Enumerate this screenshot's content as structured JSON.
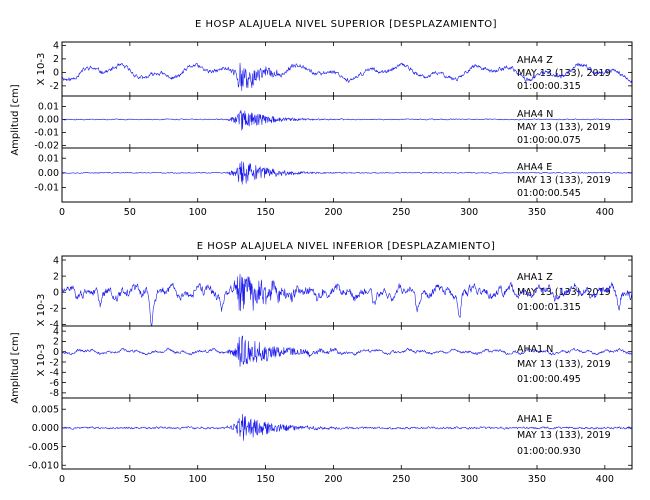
{
  "colors": {
    "trace": "#1a1aee",
    "axis": "#000000"
  },
  "chart_data": [
    {
      "type": "line",
      "title": "E HOSP ALAJUELA NIVEL SUPERIOR [DESPLAZAMIENTO]",
      "ylabel": "Amplitud [cm]",
      "xlim": [
        0,
        420
      ],
      "x_ticks": [
        0,
        50,
        100,
        150,
        200,
        250,
        300,
        350,
        400
      ],
      "x_tick_labels": [
        "0",
        "50",
        "100",
        "150",
        "200",
        "250",
        "300",
        "350",
        "400"
      ],
      "panels": [
        {
          "component": "Z",
          "unit_label": "X 10-3",
          "ylim": [
            -3.5,
            4.5
          ],
          "y_ticks": [
            -2,
            0,
            2,
            4
          ],
          "y_tick_labels": [
            "-2",
            "0",
            "2",
            "4"
          ],
          "label_lines": [
            "AHA4    Z",
            "MAY 13 (133), 2019",
            "01:00:00.315"
          ],
          "trace": {
            "noise": 0.55,
            "peak": 2.9,
            "decay": 0.07,
            "wave": 1.3,
            "period": 70,
            "seed": 11
          }
        },
        {
          "component": "N",
          "ylim": [
            -0.022,
            0.018
          ],
          "y_ticks": [
            -0.02,
            -0.01,
            0.0,
            0.01
          ],
          "y_tick_labels": [
            "-0.02",
            "-0.01",
            "0.00",
            "0.01"
          ],
          "label_lines": [
            "AHA4    N",
            "MAY 13 (133), 2019",
            "01:00:00.075"
          ],
          "trace": {
            "noise": 0.0007,
            "peak": 0.011,
            "decay": 0.055,
            "wave": 0.0,
            "period": 60,
            "seed": 23
          }
        },
        {
          "component": "E",
          "ylim": [
            -0.02,
            0.017
          ],
          "y_ticks": [
            -0.01,
            0.0,
            0.01
          ],
          "y_tick_labels": [
            "-0.01",
            "0.00",
            "0.01"
          ],
          "label_lines": [
            "AHA4    E",
            "MAY 13 (133), 2019",
            "01:00:00.545"
          ],
          "trace": {
            "noise": 0.0006,
            "peak": 0.011,
            "decay": 0.05,
            "wave": 0.0,
            "period": 60,
            "seed": 37
          }
        }
      ]
    },
    {
      "type": "line",
      "title": "E HOSP ALAJUELA NIVEL INFERIOR [DESPLAZAMIENTO]",
      "ylabel": "Amplitud [cm]",
      "xlim": [
        0,
        420
      ],
      "x_ticks": [
        0,
        50,
        100,
        150,
        200,
        250,
        300,
        350,
        400
      ],
      "x_tick_labels": [
        "0",
        "50",
        "100",
        "150",
        "200",
        "250",
        "300",
        "350",
        "400"
      ],
      "panels": [
        {
          "component": "Z",
          "unit_label": "X 10-3",
          "ylim": [
            -4.2,
            4.5
          ],
          "y_ticks": [
            -4,
            -2,
            0,
            2,
            4
          ],
          "y_tick_labels": [
            "-4",
            "-2",
            "0",
            "2",
            "4"
          ],
          "label_lines": [
            "AHA1    Z",
            "MAY 13 (133), 2019",
            "01:00:01.315"
          ],
          "trace": {
            "noise": 0.9,
            "peak": 3.0,
            "decay": 0.045,
            "wave": 0.8,
            "period": 25,
            "seed": 51,
            "dips": true
          }
        },
        {
          "component": "N",
          "unit_label": "X 10-3",
          "ylim": [
            -9.0,
            5.0
          ],
          "y_ticks": [
            -8,
            -6,
            -4,
            -2,
            0,
            2,
            4
          ],
          "y_tick_labels": [
            "-8",
            "-6",
            "-4",
            "-2",
            "0",
            "2",
            "4"
          ],
          "label_lines": [
            "AHA1    N",
            "MAY 13 (133), 2019",
            "01:00:00.495"
          ],
          "trace": {
            "noise": 0.45,
            "peak": 3.6,
            "decay": 0.04,
            "wave": 0.5,
            "period": 30,
            "seed": 67
          }
        },
        {
          "component": "E",
          "ylim": [
            -0.011,
            0.008
          ],
          "y_ticks": [
            -0.01,
            -0.005,
            0.0,
            0.005
          ],
          "y_tick_labels": [
            "-0.010",
            "-0.005",
            "0.000",
            "0.005"
          ],
          "label_lines": [
            "AHA1    E",
            "MAY 13 (133), 2019",
            "01:00:00.930"
          ],
          "trace": {
            "noise": 0.0005,
            "peak": 0.0045,
            "decay": 0.045,
            "wave": 0.0,
            "period": 40,
            "seed": 83
          }
        }
      ]
    }
  ]
}
